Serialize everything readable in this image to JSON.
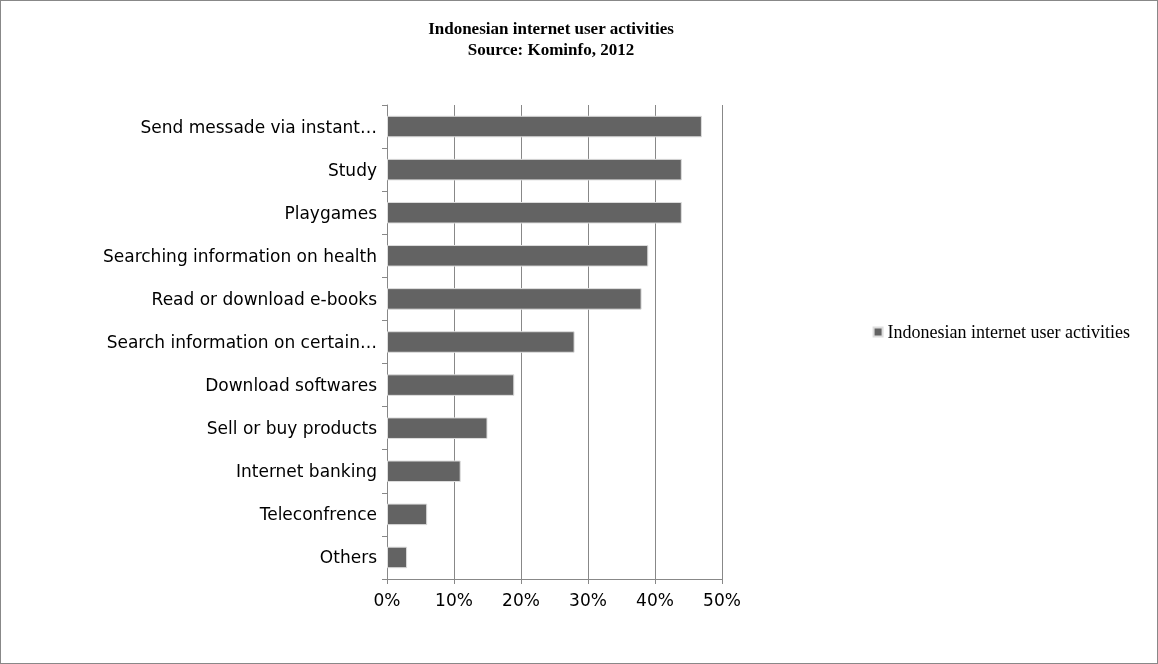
{
  "chart_data": {
    "type": "bar",
    "orientation": "horizontal",
    "title": "Indonesian internet user activities",
    "subtitle": "Source: Kominfo, 2012",
    "categories": [
      "Send messade via instant…",
      "Study",
      "Playgames",
      "Searching information on health",
      "Read or download e-books",
      "Search information on certain…",
      "Download softwares",
      "Sell or buy products",
      "Internet banking",
      "Teleconfrence",
      "Others"
    ],
    "series": [
      {
        "name": "Indonesian internet user activities",
        "color": "#636363",
        "values": [
          47,
          44,
          44,
          39,
          38,
          28,
          19,
          15,
          11,
          6,
          3
        ]
      }
    ],
    "xlim": [
      0,
      50
    ],
    "xticks": [
      {
        "value": 0,
        "label": "0%"
      },
      {
        "value": 10,
        "label": "10%"
      },
      {
        "value": 20,
        "label": "20%"
      },
      {
        "value": 30,
        "label": "30%"
      },
      {
        "value": 40,
        "label": "40%"
      },
      {
        "value": 50,
        "label": "50%"
      }
    ],
    "grid": "x",
    "legend": "right"
  }
}
